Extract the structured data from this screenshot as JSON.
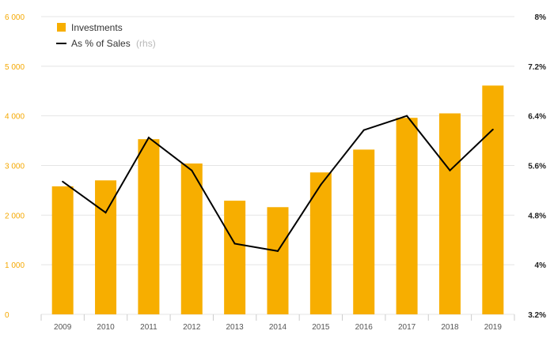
{
  "chart_data": {
    "type": "bar",
    "categories": [
      "2009",
      "2010",
      "2011",
      "2012",
      "2013",
      "2014",
      "2015",
      "2016",
      "2017",
      "2018",
      "2019"
    ],
    "series": [
      {
        "name": "Investments",
        "type": "bar",
        "axis": "left",
        "values": [
          2580,
          2700,
          3530,
          3040,
          2290,
          2160,
          2860,
          3320,
          3960,
          4050,
          4610
        ]
      },
      {
        "name": "As % of Sales",
        "name_suffix": "(rhs)",
        "type": "line",
        "axis": "right",
        "values": [
          5.34,
          4.84,
          6.05,
          5.52,
          4.34,
          4.22,
          5.29,
          6.17,
          6.4,
          5.52,
          6.18
        ]
      }
    ],
    "left_axis": {
      "ylim": [
        0,
        6000
      ],
      "ticks": [
        0,
        1000,
        2000,
        3000,
        4000,
        5000,
        6000
      ],
      "tick_labels": [
        "0",
        "1 000",
        "2 000",
        "3 000",
        "4 000",
        "5 000",
        "6 000"
      ]
    },
    "right_axis": {
      "ylim": [
        3.2,
        8.0
      ],
      "ticks": [
        3.2,
        4.0,
        4.8,
        5.6,
        6.4,
        7.2,
        8.0
      ],
      "tick_labels": [
        "3.2%",
        "4%",
        "4.8%",
        "5.6%",
        "6.4%",
        "7.2%",
        "8%"
      ]
    },
    "grid": "horizontal",
    "legend_position": "top-left",
    "colors": {
      "bar": "#f7ae00",
      "line": "#000000",
      "left_ticks": "#f5a800",
      "grid": "#e4e4e4"
    }
  }
}
